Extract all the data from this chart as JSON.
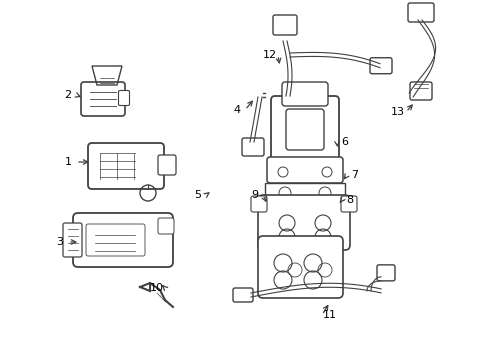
{
  "background_color": "#ffffff",
  "line_color": "#404040",
  "label_color": "#000000",
  "fig_w": 4.89,
  "fig_h": 3.6,
  "dpi": 100
}
